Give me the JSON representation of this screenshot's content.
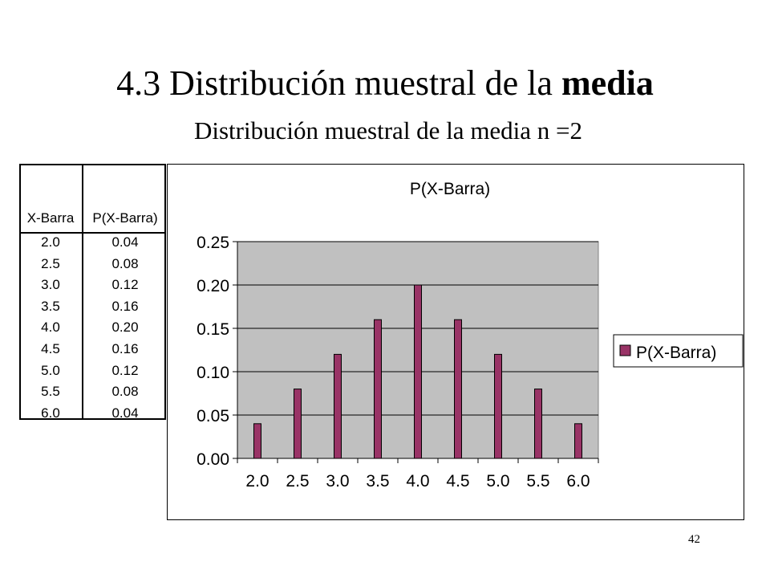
{
  "slide": {
    "title_prefix": "4.3 Distribución muestral de la ",
    "title_bold": "media",
    "subtitle": "Distribución muestral de la media n =2",
    "page_number": "42"
  },
  "table": {
    "headers": [
      "X-Barra",
      "P(X-Barra)"
    ],
    "rows": [
      [
        "2.0",
        "0.04"
      ],
      [
        "2.5",
        "0.08"
      ],
      [
        "3.0",
        "0.12"
      ],
      [
        "3.5",
        "0.16"
      ],
      [
        "4.0",
        "0.20"
      ],
      [
        "4.5",
        "0.16"
      ],
      [
        "5.0",
        "0.12"
      ],
      [
        "5.5",
        "0.08"
      ],
      [
        "6.0",
        "0.04"
      ]
    ]
  },
  "chart_data": {
    "type": "bar",
    "title": "P(X-Barra)",
    "categories": [
      "2.0",
      "2.5",
      "3.0",
      "3.5",
      "4.0",
      "4.5",
      "5.0",
      "5.5",
      "6.0"
    ],
    "series": [
      {
        "name": "P(X-Barra)",
        "values": [
          0.04,
          0.08,
          0.12,
          0.16,
          0.2,
          0.16,
          0.12,
          0.08,
          0.04
        ]
      }
    ],
    "ylim": [
      0,
      0.25
    ],
    "yticks": [
      "0.00",
      "0.05",
      "0.10",
      "0.15",
      "0.20",
      "0.25"
    ],
    "grid": true,
    "legend": "right",
    "colors": {
      "bar": "#993366",
      "plot_bg": "#c0c0c0",
      "grid": "#000000"
    }
  }
}
